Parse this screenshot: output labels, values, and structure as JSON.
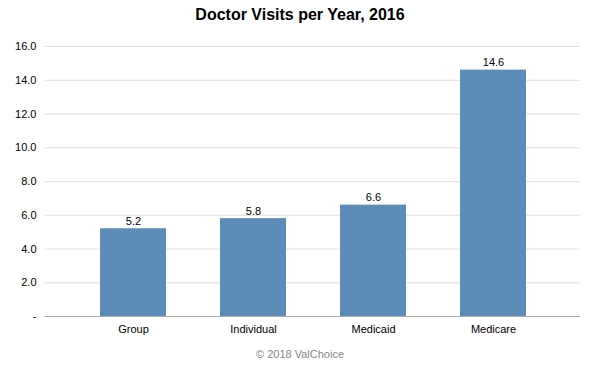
{
  "chart_data": {
    "type": "bar",
    "title": "Doctor Visits per Year, 2016",
    "categories": [
      "Group",
      "Individual",
      "Medicaid",
      "Medicare"
    ],
    "values": [
      5.2,
      5.8,
      6.6,
      14.6
    ],
    "color": "#5B8DB8",
    "ylim": [
      0,
      16.0
    ],
    "yticks": [
      {
        "value": 0,
        "label": "-"
      },
      {
        "value": 2.0,
        "label": "2.0"
      },
      {
        "value": 4.0,
        "label": "4.0"
      },
      {
        "value": 6.0,
        "label": "6.0"
      },
      {
        "value": 8.0,
        "label": "8.0"
      },
      {
        "value": 10.0,
        "label": "10.0"
      },
      {
        "value": 12.0,
        "label": "12.0"
      },
      {
        "value": 14.0,
        "label": "14.0"
      },
      {
        "value": 16.0,
        "label": "16.0"
      }
    ],
    "grid": true,
    "data_labels": true,
    "caption": "© 2018 ValChoice"
  }
}
